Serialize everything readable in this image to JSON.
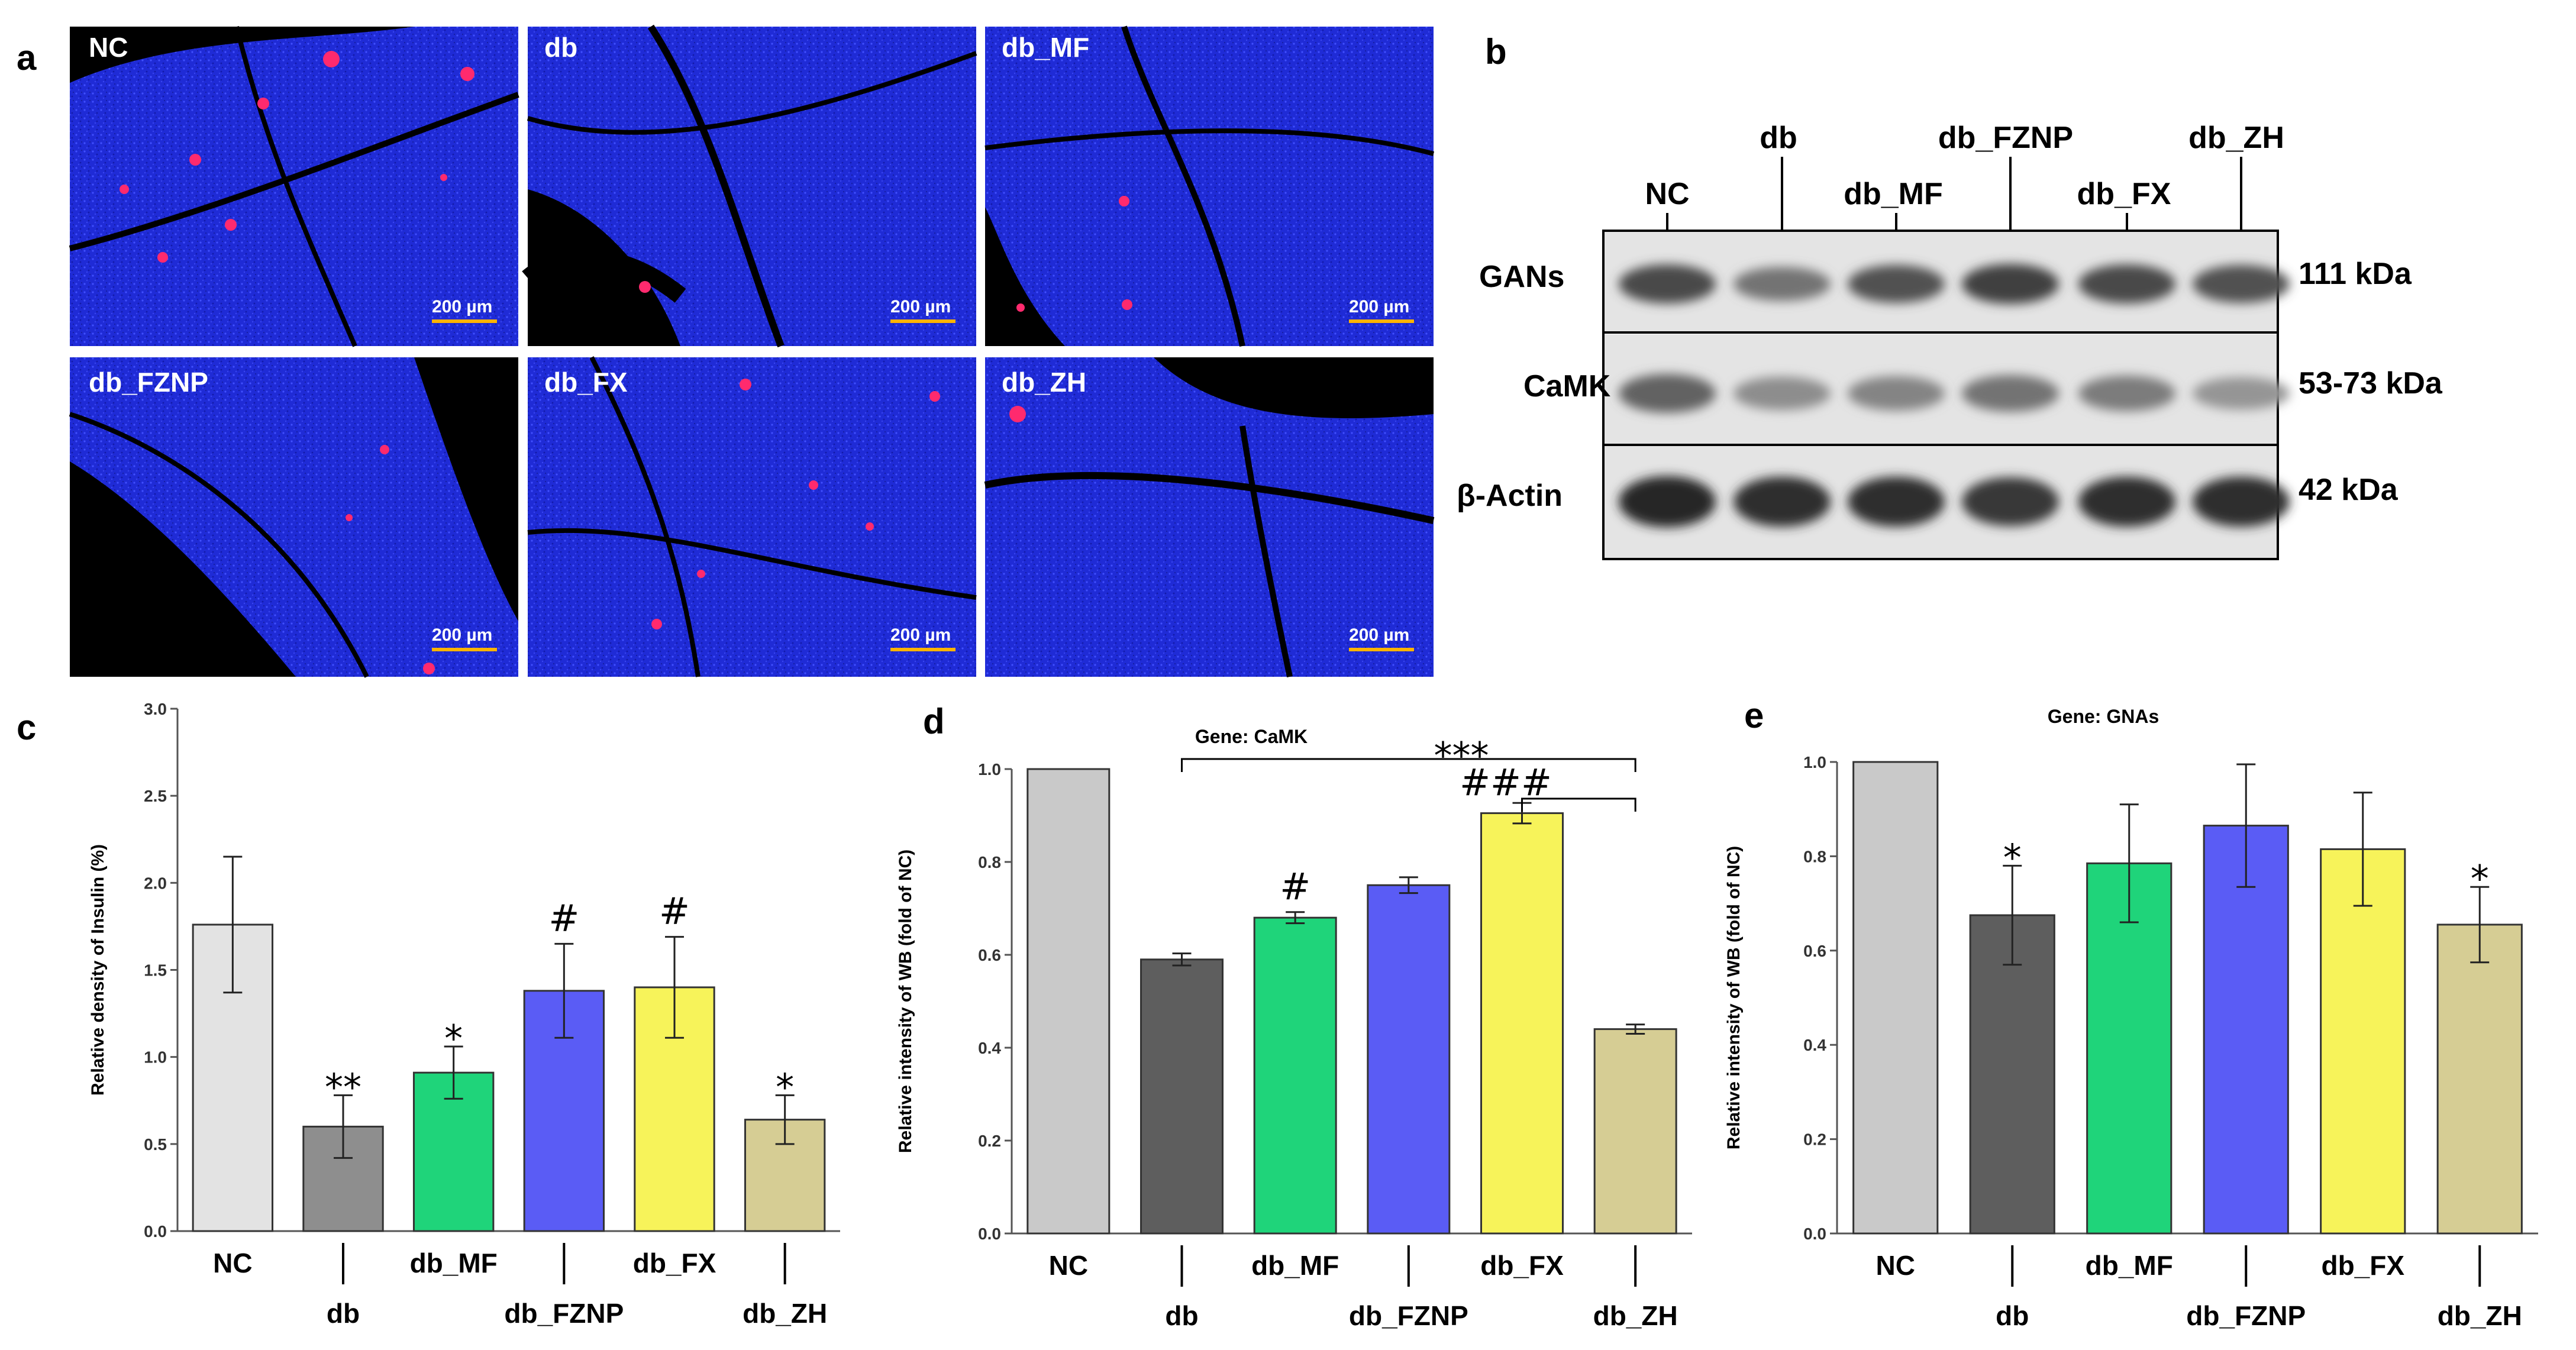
{
  "panel_labels": {
    "a": "a",
    "b": "b",
    "c": "c",
    "d": "d",
    "e": "e"
  },
  "panel_a": {
    "images": [
      {
        "label": "NC",
        "scale": "200 µm"
      },
      {
        "label": "db",
        "scale": "200 µm"
      },
      {
        "label": "db_MF",
        "scale": "200 µm"
      },
      {
        "label": "db_FZNP",
        "scale": "200 µm"
      },
      {
        "label": "db_FX",
        "scale": "200 µm"
      },
      {
        "label": "db_ZH",
        "scale": "200 µm"
      }
    ],
    "colors": {
      "background": "#000000",
      "tissue": "#1f2bd6",
      "insulin": "#ff2a6e"
    }
  },
  "panel_b": {
    "lanes": [
      "NC",
      "db",
      "db_MF",
      "db_FZNP",
      "db_FX",
      "db_ZH"
    ],
    "rows": [
      {
        "name": "GANs",
        "size": "111 kDa",
        "intensity": [
          0.75,
          0.5,
          0.7,
          0.8,
          0.75,
          0.7
        ]
      },
      {
        "name": "CaMK",
        "size": "53-73 kDa",
        "intensity": [
          0.6,
          0.35,
          0.4,
          0.5,
          0.45,
          0.3
        ]
      },
      {
        "name": "β-Actin",
        "size": "42 kDa",
        "intensity": [
          0.95,
          0.9,
          0.9,
          0.85,
          0.9,
          0.9
        ]
      }
    ]
  },
  "chart_data": [
    {
      "type": "bar",
      "panel": "c",
      "title": "",
      "ylabel": "Relative density of Insulin (%)",
      "ylim": [
        0,
        3.0
      ],
      "yticks": [
        "0.0",
        "0.5",
        "1.0",
        "1.5",
        "2.0",
        "2.5",
        "3.0"
      ],
      "categories": [
        "NC",
        "db",
        "db_MF",
        "db_FZNP",
        "db_FX",
        "db_ZH"
      ],
      "values": [
        1.76,
        0.6,
        0.91,
        1.38,
        1.4,
        0.64
      ],
      "errors": [
        0.39,
        0.18,
        0.15,
        0.27,
        0.29,
        0.14
      ],
      "significance": [
        "",
        "**",
        "*",
        "#",
        "#",
        ""
      ],
      "extra_marks": [
        {
          "index": 5,
          "text": "*"
        }
      ],
      "colors": [
        "#e3e3e3",
        "#8e8e8e",
        "#1fd47a",
        "#5a5cf5",
        "#f7f35a",
        "#d6cd94"
      ]
    },
    {
      "type": "bar",
      "panel": "d",
      "title": "Gene: CaMK",
      "ylabel": "Relative intensity of WB (fold of NC)",
      "ylim": [
        0,
        1.0
      ],
      "yticks": [
        "0.0",
        "0.2",
        "0.4",
        "0.6",
        "0.8",
        "1.0"
      ],
      "categories": [
        "NC",
        "db",
        "db_MF",
        "db_FZNP",
        "db_FX",
        "db_ZH"
      ],
      "values": [
        1.0,
        0.59,
        0.68,
        0.75,
        0.905,
        0.44
      ],
      "errors": [
        0.0,
        0.013,
        0.012,
        0.017,
        0.022,
        0.01
      ],
      "significance": [
        "",
        "",
        "#",
        "",
        "",
        ""
      ],
      "brackets": [
        {
          "from": 1,
          "to": 5,
          "text": "***"
        },
        {
          "from": 4,
          "to": 5,
          "text": "###"
        }
      ],
      "colors": [
        "#c9c9c9",
        "#5e5e5e",
        "#1fd47a",
        "#5a5cf5",
        "#f7f35a",
        "#d6cd94"
      ]
    },
    {
      "type": "bar",
      "panel": "e",
      "title": "Gene: GNAs",
      "ylabel": "Relative intensity of WB (fold of NC)",
      "ylim": [
        0,
        1.0
      ],
      "yticks": [
        "0.0",
        "0.2",
        "0.4",
        "0.6",
        "0.8",
        "1.0"
      ],
      "categories": [
        "NC",
        "db",
        "db_MF",
        "db_FZNP",
        "db_FX",
        "db_ZH"
      ],
      "values": [
        1.0,
        0.675,
        0.785,
        0.865,
        0.815,
        0.655
      ],
      "errors": [
        0.0,
        0.105,
        0.125,
        0.13,
        0.12,
        0.08
      ],
      "significance": [
        "",
        "*",
        "",
        "",
        "",
        "*"
      ],
      "colors": [
        "#c9c9c9",
        "#5e5e5e",
        "#1fd47a",
        "#5a5cf5",
        "#f7f35a",
        "#d6cd94"
      ]
    }
  ]
}
